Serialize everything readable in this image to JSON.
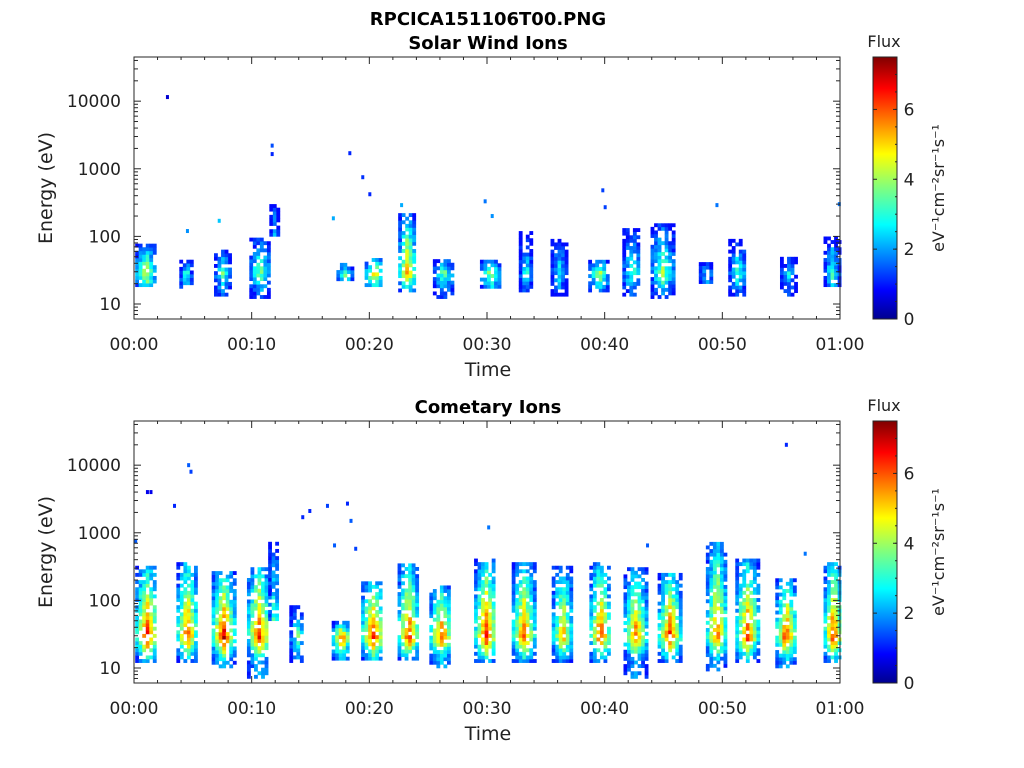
{
  "figure": {
    "title": "RPCICA151106T00.PNG"
  },
  "chart_data": [
    {
      "type": "heatmap",
      "title": "Solar Wind Ions",
      "xlabel": "Time",
      "ylabel": "Energy (eV)",
      "x_ticks": [
        "00:00",
        "00:10",
        "00:20",
        "00:30",
        "00:40",
        "00:50",
        "01:00"
      ],
      "xlim_minutes": [
        0,
        60
      ],
      "y_scale": "log",
      "y_ticks": [
        10,
        100,
        1000,
        10000
      ],
      "y_tick_labels": [
        "10",
        "100",
        "1000",
        "10000"
      ],
      "ylim": [
        6,
        45000
      ],
      "colorbar": {
        "title": "Flux",
        "label": "eV⁻¹cm⁻²sr⁻¹s⁻¹",
        "range": [
          0,
          7.5
        ],
        "ticks": [
          0,
          2,
          4,
          6
        ],
        "colormap": "jet"
      },
      "grid": false,
      "bursts": [
        {
          "t": 0.9,
          "w": 1.6,
          "e_lo": 18,
          "e_hi": 70,
          "peak": 4.6
        },
        {
          "t": 4.3,
          "w": 0.9,
          "e_lo": 17,
          "e_hi": 45,
          "peak": 3.2
        },
        {
          "t": 7.4,
          "w": 1.2,
          "e_lo": 13,
          "e_hi": 60,
          "peak": 3.6
        },
        {
          "t": 10.6,
          "w": 1.6,
          "e_lo": 12,
          "e_hi": 85,
          "peak": 3.8
        },
        {
          "t": 11.8,
          "w": 0.6,
          "e_lo": 100,
          "e_hi": 300,
          "peak": 3.0
        },
        {
          "t": 17.8,
          "w": 1.2,
          "e_lo": 22,
          "e_hi": 40,
          "peak": 3.4
        },
        {
          "t": 20.3,
          "w": 1.4,
          "e_lo": 18,
          "e_hi": 45,
          "peak": 5.0
        },
        {
          "t": 23.1,
          "w": 1.3,
          "e_lo": 15,
          "e_hi": 200,
          "peak": 5.6
        },
        {
          "t": 26.2,
          "w": 1.6,
          "e_lo": 12,
          "e_hi": 45,
          "peak": 3.6
        },
        {
          "t": 30.2,
          "w": 1.6,
          "e_lo": 17,
          "e_hi": 45,
          "peak": 4.0
        },
        {
          "t": 33.2,
          "w": 1.0,
          "e_lo": 15,
          "e_hi": 110,
          "peak": 3.0
        },
        {
          "t": 36.0,
          "w": 1.2,
          "e_lo": 13,
          "e_hi": 90,
          "peak": 2.8
        },
        {
          "t": 39.4,
          "w": 1.6,
          "e_lo": 15,
          "e_hi": 45,
          "peak": 4.2
        },
        {
          "t": 42.2,
          "w": 1.4,
          "e_lo": 13,
          "e_hi": 120,
          "peak": 3.4
        },
        {
          "t": 44.8,
          "w": 1.8,
          "e_lo": 12,
          "e_hi": 140,
          "peak": 4.0
        },
        {
          "t": 48.5,
          "w": 1.0,
          "e_lo": 20,
          "e_hi": 40,
          "peak": 2.6
        },
        {
          "t": 51.2,
          "w": 1.4,
          "e_lo": 13,
          "e_hi": 90,
          "peak": 3.2
        },
        {
          "t": 55.5,
          "w": 1.2,
          "e_lo": 13,
          "e_hi": 45,
          "peak": 2.6
        },
        {
          "t": 59.2,
          "w": 1.2,
          "e_lo": 18,
          "e_hi": 90,
          "peak": 3.2
        }
      ],
      "points": [
        {
          "t": 2.8,
          "e": 11500,
          "v": 0.6
        },
        {
          "t": 4.5,
          "e": 120,
          "v": 2.0
        },
        {
          "t": 7.2,
          "e": 170,
          "v": 2.4
        },
        {
          "t": 11.7,
          "e": 2200,
          "v": 1.5
        },
        {
          "t": 11.7,
          "e": 1650,
          "v": 1.2
        },
        {
          "t": 16.9,
          "e": 185,
          "v": 2.2
        },
        {
          "t": 18.3,
          "e": 1700,
          "v": 1.2
        },
        {
          "t": 19.4,
          "e": 750,
          "v": 1.3
        },
        {
          "t": 20.0,
          "e": 420,
          "v": 1.2
        },
        {
          "t": 22.7,
          "e": 290,
          "v": 2.2
        },
        {
          "t": 29.8,
          "e": 330,
          "v": 1.8
        },
        {
          "t": 30.4,
          "e": 200,
          "v": 2.0
        },
        {
          "t": 39.8,
          "e": 480,
          "v": 1.4
        },
        {
          "t": 40.0,
          "e": 270,
          "v": 1.4
        },
        {
          "t": 49.5,
          "e": 290,
          "v": 1.8
        },
        {
          "t": 59.9,
          "e": 300,
          "v": 1.8
        }
      ]
    },
    {
      "type": "heatmap",
      "title": "Cometary Ions",
      "xlabel": "Time",
      "ylabel": "Energy (eV)",
      "x_ticks": [
        "00:00",
        "00:10",
        "00:20",
        "00:30",
        "00:40",
        "00:50",
        "01:00"
      ],
      "xlim_minutes": [
        0,
        60
      ],
      "y_scale": "log",
      "y_ticks": [
        10,
        100,
        1000,
        10000
      ],
      "y_tick_labels": [
        "10",
        "100",
        "1000",
        "10000"
      ],
      "ylim": [
        6,
        45000
      ],
      "colorbar": {
        "title": "Flux",
        "label": "eV⁻¹cm⁻²sr⁻¹s⁻¹",
        "range": [
          0,
          7.5
        ],
        "ticks": [
          0,
          2,
          4,
          6
        ],
        "colormap": "jet"
      },
      "grid": false,
      "bursts": [
        {
          "t": 1.0,
          "w": 1.8,
          "e_lo": 12,
          "e_hi": 300,
          "peak": 6.6
        },
        {
          "t": 4.4,
          "w": 1.6,
          "e_lo": 12,
          "e_hi": 350,
          "peak": 6.2
        },
        {
          "t": 7.5,
          "w": 1.8,
          "e_lo": 10,
          "e_hi": 250,
          "peak": 6.8
        },
        {
          "t": 10.5,
          "w": 1.8,
          "e_lo": 7,
          "e_hi": 300,
          "peak": 6.4
        },
        {
          "t": 11.8,
          "w": 0.8,
          "e_lo": 50,
          "e_hi": 700,
          "peak": 4.0
        },
        {
          "t": 13.8,
          "w": 1.2,
          "e_lo": 12,
          "e_hi": 80,
          "peak": 3.6
        },
        {
          "t": 17.5,
          "w": 1.4,
          "e_lo": 13,
          "e_hi": 45,
          "peak": 6.0
        },
        {
          "t": 20.2,
          "w": 1.8,
          "e_lo": 13,
          "e_hi": 180,
          "peak": 6.6
        },
        {
          "t": 23.2,
          "w": 1.6,
          "e_lo": 13,
          "e_hi": 350,
          "peak": 6.4
        },
        {
          "t": 26.0,
          "w": 1.8,
          "e_lo": 10,
          "e_hi": 150,
          "peak": 6.0
        },
        {
          "t": 29.8,
          "w": 1.8,
          "e_lo": 12,
          "e_hi": 400,
          "peak": 6.4
        },
        {
          "t": 33.0,
          "w": 1.8,
          "e_lo": 12,
          "e_hi": 350,
          "peak": 6.0
        },
        {
          "t": 36.3,
          "w": 1.6,
          "e_lo": 12,
          "e_hi": 300,
          "peak": 5.4
        },
        {
          "t": 39.5,
          "w": 1.6,
          "e_lo": 12,
          "e_hi": 350,
          "peak": 6.4
        },
        {
          "t": 42.5,
          "w": 1.8,
          "e_lo": 7,
          "e_hi": 300,
          "peak": 5.8
        },
        {
          "t": 45.4,
          "w": 1.8,
          "e_lo": 12,
          "e_hi": 250,
          "peak": 6.4
        },
        {
          "t": 49.4,
          "w": 1.6,
          "e_lo": 9,
          "e_hi": 700,
          "peak": 6.0
        },
        {
          "t": 52.0,
          "w": 1.8,
          "e_lo": 12,
          "e_hi": 400,
          "peak": 6.2
        },
        {
          "t": 55.3,
          "w": 1.6,
          "e_lo": 10,
          "e_hi": 200,
          "peak": 6.4
        },
        {
          "t": 59.3,
          "w": 1.4,
          "e_lo": 12,
          "e_hi": 350,
          "peak": 6.6
        }
      ],
      "points": [
        {
          "t": 0.1,
          "e": 750,
          "v": 1.6
        },
        {
          "t": 1.1,
          "e": 4000,
          "v": 0.8
        },
        {
          "t": 1.4,
          "e": 4000,
          "v": 0.8
        },
        {
          "t": 3.4,
          "e": 2500,
          "v": 1.2
        },
        {
          "t": 4.6,
          "e": 10000,
          "v": 1.6
        },
        {
          "t": 4.8,
          "e": 8000,
          "v": 1.4
        },
        {
          "t": 14.3,
          "e": 1700,
          "v": 1.2
        },
        {
          "t": 14.9,
          "e": 2100,
          "v": 1.2
        },
        {
          "t": 16.4,
          "e": 2500,
          "v": 1.4
        },
        {
          "t": 17.0,
          "e": 650,
          "v": 1.6
        },
        {
          "t": 18.1,
          "e": 2700,
          "v": 1.2
        },
        {
          "t": 18.4,
          "e": 1500,
          "v": 1.6
        },
        {
          "t": 18.8,
          "e": 580,
          "v": 1.4
        },
        {
          "t": 30.1,
          "e": 1200,
          "v": 1.8
        },
        {
          "t": 43.6,
          "e": 650,
          "v": 1.6
        },
        {
          "t": 55.4,
          "e": 20000,
          "v": 1.2
        },
        {
          "t": 57.0,
          "e": 490,
          "v": 1.8
        }
      ]
    }
  ]
}
